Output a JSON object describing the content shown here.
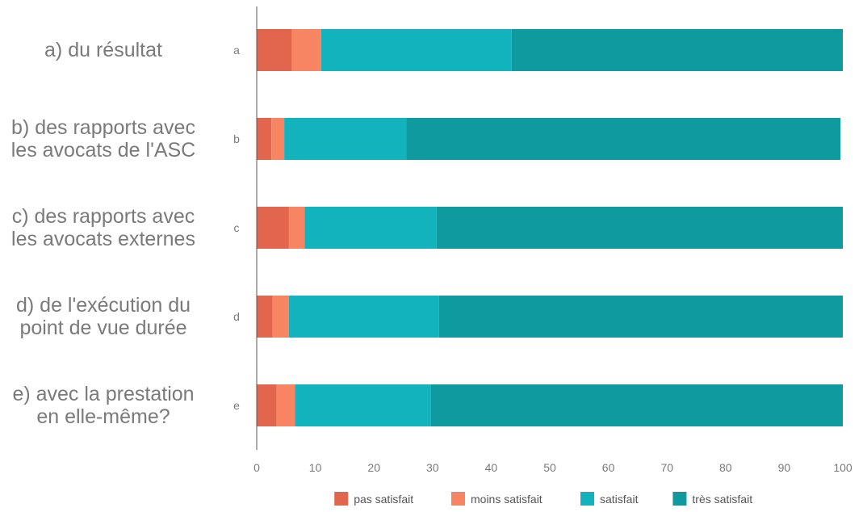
{
  "chart_data": {
    "type": "bar",
    "orientation": "horizontal",
    "stacked": true,
    "categories": [
      "a",
      "b",
      "c",
      "d",
      "e"
    ],
    "category_descriptions": [
      [
        "a) du résultat"
      ],
      [
        "b) des rapports avec",
        "les avocats de l'ASC"
      ],
      [
        "c) des rapports avec",
        "les avocats externes"
      ],
      [
        "d) de l'exécution du",
        "point de vue durée"
      ],
      [
        "e) avec la prestation",
        "en elle-même?"
      ]
    ],
    "series": [
      {
        "name": "pas satisfait",
        "color": "#e2664d",
        "values": [
          6,
          2.5,
          5.5,
          2.7,
          3.4
        ]
      },
      {
        "name": "moins satisfait",
        "color": "#f78563",
        "values": [
          5,
          2.2,
          2.7,
          2.8,
          3.1
        ]
      },
      {
        "name": "satisfait",
        "color": "#13b3bd",
        "values": [
          32.5,
          20.8,
          22.5,
          25.6,
          23.2
        ]
      },
      {
        "name": "très satisfait",
        "color": "#0f9aa0",
        "values": [
          56.5,
          74.1,
          69.3,
          68.9,
          70.3
        ]
      }
    ],
    "xlim": [
      0,
      100
    ],
    "xticks": [
      "0",
      "10",
      "20",
      "30",
      "40",
      "50",
      "60",
      "70",
      "80",
      "90",
      "100"
    ],
    "grid": false,
    "legend_position": "bottom"
  }
}
